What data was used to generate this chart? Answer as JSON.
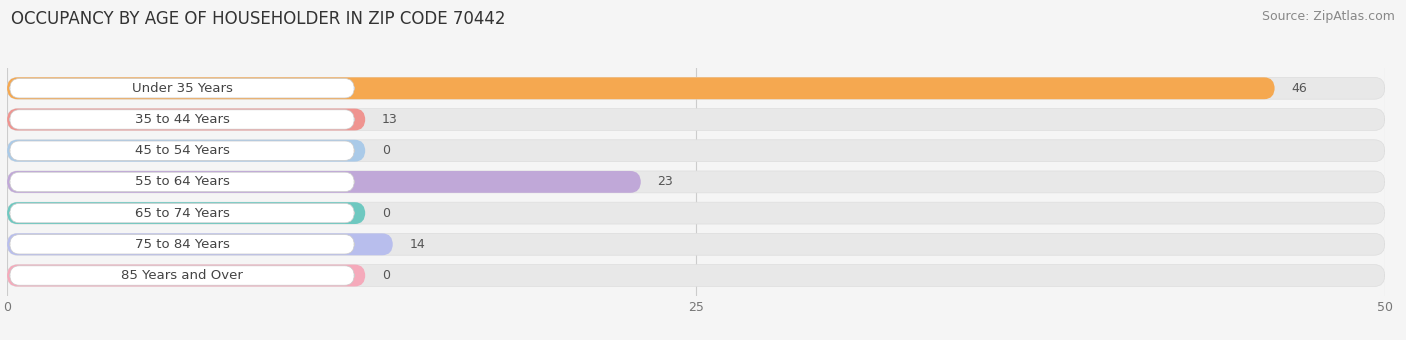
{
  "title": "OCCUPANCY BY AGE OF HOUSEHOLDER IN ZIP CODE 70442",
  "source": "Source: ZipAtlas.com",
  "categories": [
    "Under 35 Years",
    "35 to 44 Years",
    "45 to 54 Years",
    "55 to 64 Years",
    "65 to 74 Years",
    "75 to 84 Years",
    "85 Years and Over"
  ],
  "values": [
    46,
    13,
    0,
    23,
    0,
    14,
    0
  ],
  "bar_colors": [
    "#F5A850",
    "#EF9490",
    "#AACAE8",
    "#C0A8D8",
    "#6EC8C0",
    "#B8BEED",
    "#F5AABB"
  ],
  "zero_bar_widths": [
    12,
    12,
    12,
    12,
    12,
    12,
    12
  ],
  "xlim_data": [
    0,
    50
  ],
  "xticks": [
    0,
    25,
    50
  ],
  "background_color": "#f5f5f5",
  "bar_bg_color": "#e8e8e8",
  "label_bg_color": "#ffffff",
  "title_fontsize": 12,
  "source_fontsize": 9,
  "label_fontsize": 9.5,
  "value_fontsize": 9
}
